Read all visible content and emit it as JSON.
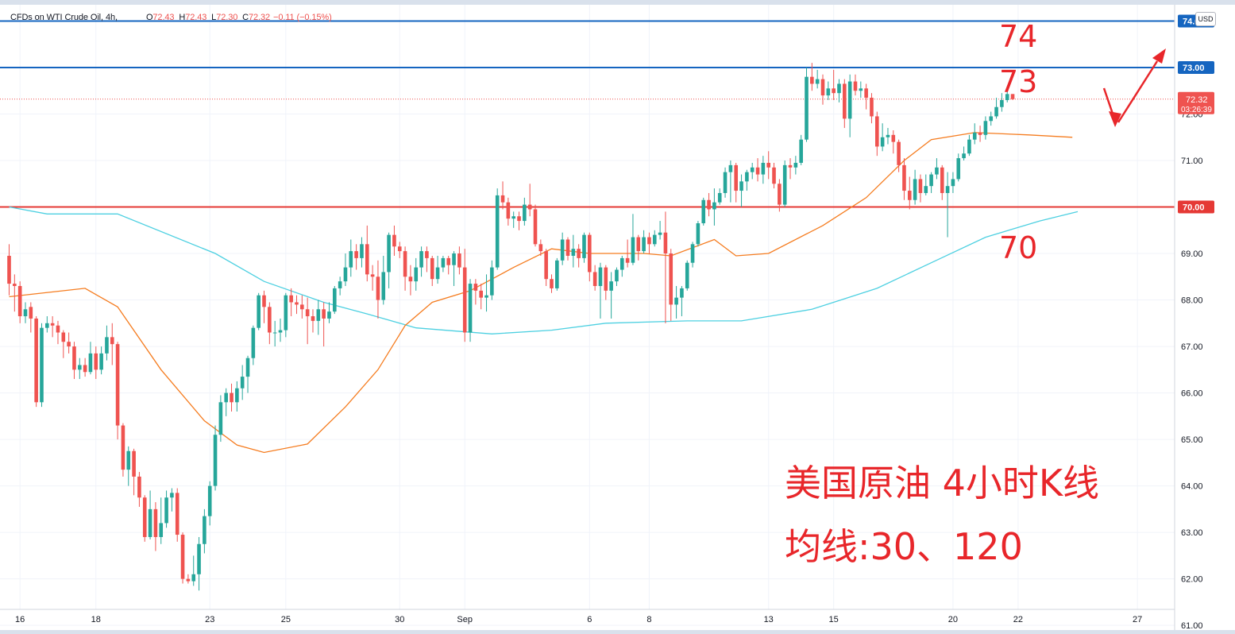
{
  "legend": {
    "symbol": "CFDs on WTI Crude Oil, 4h,",
    "o_label": "O",
    "o": "72.43",
    "h_label": "H",
    "h": "72.43",
    "l_label": "L",
    "l": "72.30",
    "c_label": "C",
    "c": "72.32",
    "change": "−0.11 (−0.15%)"
  },
  "currency": "USD",
  "price_tag": {
    "price": "72.32",
    "countdown": "03:26:39"
  },
  "annotations": {
    "level_74": "74",
    "level_73": "73",
    "level_70": "70",
    "title_line1": "美国原油 4小时K线",
    "title_line2": "均线:30、120"
  },
  "colors": {
    "up": "#26a69a",
    "down": "#ef5350",
    "ma30": "#f57c1f",
    "ma120": "#4dd0e1",
    "blue_line": "#1565c0",
    "red_line": "#e53935",
    "annotation": "#e8262a"
  },
  "chart_data": {
    "type": "candlestick",
    "title": "CFDs on WTI Crude Oil, 4h",
    "ylim": [
      60.9,
      74.35
    ],
    "y_ticks": [
      {
        "value": 72.0,
        "label": "72.00"
      },
      {
        "value": 71.0,
        "label": "71.00"
      },
      {
        "value": 69.0,
        "label": "69.00"
      },
      {
        "value": 68.0,
        "label": "68.00"
      },
      {
        "value": 67.0,
        "label": "67.00"
      },
      {
        "value": 66.0,
        "label": "66.00"
      },
      {
        "value": 65.0,
        "label": "65.00"
      },
      {
        "value": 64.0,
        "label": "64.00"
      },
      {
        "value": 63.0,
        "label": "63.00"
      },
      {
        "value": 62.0,
        "label": "62.00"
      },
      {
        "value": 61.0,
        "label": "61.00"
      }
    ],
    "x_ticks": [
      {
        "label": "16",
        "bar": 2
      },
      {
        "label": "18",
        "bar": 16
      },
      {
        "label": "23",
        "bar": 37
      },
      {
        "label": "25",
        "bar": 51
      },
      {
        "label": "30",
        "bar": 72
      },
      {
        "label": "Sep",
        "bar": 84
      },
      {
        "label": "6",
        "bar": 107
      },
      {
        "label": "8",
        "bar": 118
      },
      {
        "label": "13",
        "bar": 140
      },
      {
        "label": "15",
        "bar": 152
      },
      {
        "label": "20",
        "bar": 174
      },
      {
        "label": "22",
        "bar": 186
      },
      {
        "label": "27",
        "bar": 208
      }
    ],
    "horizontal_lines": [
      {
        "value": 74.0,
        "label": "74.00",
        "color": "blue"
      },
      {
        "value": 73.0,
        "label": "73.00",
        "color": "blue"
      },
      {
        "value": 70.0,
        "label": "70.00",
        "color": "red"
      }
    ],
    "ma30": [
      [
        0,
        68.07
      ],
      [
        14,
        68.25
      ],
      [
        20,
        67.85
      ],
      [
        28,
        66.5
      ],
      [
        36,
        65.4
      ],
      [
        42,
        64.88
      ],
      [
        47,
        64.72
      ],
      [
        55,
        64.9
      ],
      [
        62,
        65.7
      ],
      [
        68,
        66.5
      ],
      [
        73,
        67.45
      ],
      [
        78,
        67.95
      ],
      [
        85,
        68.2
      ],
      [
        93,
        68.7
      ],
      [
        100,
        69.1
      ],
      [
        107,
        69.0
      ],
      [
        117,
        69.0
      ],
      [
        122,
        68.95
      ],
      [
        130,
        69.3
      ],
      [
        134,
        68.95
      ],
      [
        140,
        69.0
      ],
      [
        150,
        69.6
      ],
      [
        158,
        70.2
      ],
      [
        165,
        71.0
      ],
      [
        170,
        71.45
      ],
      [
        178,
        71.6
      ],
      [
        188,
        71.55
      ],
      [
        196,
        71.5
      ]
    ],
    "ma120": [
      [
        0,
        70.0
      ],
      [
        7,
        69.85
      ],
      [
        20,
        69.85
      ],
      [
        38,
        69.0
      ],
      [
        47,
        68.4
      ],
      [
        58,
        67.95
      ],
      [
        66,
        67.7
      ],
      [
        75,
        67.4
      ],
      [
        89,
        67.27
      ],
      [
        100,
        67.35
      ],
      [
        110,
        67.5
      ],
      [
        125,
        67.55
      ],
      [
        135,
        67.55
      ],
      [
        148,
        67.8
      ],
      [
        160,
        68.25
      ],
      [
        170,
        68.8
      ],
      [
        180,
        69.35
      ],
      [
        190,
        69.7
      ],
      [
        197,
        69.9
      ]
    ],
    "candles": [
      [
        68.95,
        68.35,
        69.2,
        68.1
      ],
      [
        68.35,
        68.3,
        68.55,
        67.75
      ],
      [
        68.3,
        67.65,
        68.4,
        67.5
      ],
      [
        67.65,
        67.8,
        67.95,
        67.5
      ],
      [
        67.85,
        67.6,
        67.95,
        67.3
      ],
      [
        67.6,
        65.8,
        67.65,
        65.7
      ],
      [
        65.8,
        67.4,
        67.5,
        65.7
      ],
      [
        67.4,
        67.5,
        67.65,
        67.3
      ],
      [
        67.5,
        67.45,
        67.65,
        67.2
      ],
      [
        67.45,
        67.3,
        67.55,
        67.05
      ],
      [
        67.3,
        67.1,
        67.35,
        66.75
      ],
      [
        67.1,
        67.0,
        67.3,
        66.85
      ],
      [
        67.0,
        66.5,
        67.1,
        66.3
      ],
      [
        66.5,
        66.6,
        66.75,
        66.3
      ],
      [
        66.6,
        66.45,
        66.75,
        66.35
      ],
      [
        66.45,
        66.85,
        67.1,
        66.4
      ],
      [
        66.85,
        66.5,
        67.0,
        66.3
      ],
      [
        66.5,
        66.85,
        67.0,
        66.4
      ],
      [
        66.85,
        67.2,
        67.45,
        66.7
      ],
      [
        67.2,
        67.05,
        67.5,
        66.6
      ],
      [
        67.05,
        65.3,
        67.1,
        65.0
      ],
      [
        65.3,
        64.35,
        65.35,
        64.2
      ],
      [
        64.35,
        64.75,
        64.85,
        64.0
      ],
      [
        64.75,
        64.2,
        64.8,
        63.8
      ],
      [
        64.2,
        63.75,
        64.3,
        63.55
      ],
      [
        63.75,
        62.9,
        63.8,
        62.8
      ],
      [
        62.9,
        63.5,
        63.9,
        62.85
      ],
      [
        63.5,
        62.9,
        63.65,
        62.6
      ],
      [
        62.9,
        63.2,
        63.75,
        62.75
      ],
      [
        63.2,
        63.75,
        63.9,
        63.1
      ],
      [
        63.75,
        63.85,
        63.95,
        63.45
      ],
      [
        63.85,
        62.95,
        63.95,
        62.8
      ],
      [
        62.95,
        62.0,
        63.0,
        61.9
      ],
      [
        62.0,
        61.95,
        62.1,
        61.9
      ],
      [
        61.95,
        62.1,
        62.5,
        61.85
      ],
      [
        62.1,
        62.75,
        62.9,
        61.75
      ],
      [
        62.75,
        63.35,
        63.5,
        62.55
      ],
      [
        63.35,
        64.0,
        64.1,
        63.15
      ],
      [
        64.0,
        65.1,
        65.3,
        63.9
      ],
      [
        65.1,
        65.8,
        65.95,
        64.95
      ],
      [
        65.8,
        66.0,
        66.1,
        65.5
      ],
      [
        66.0,
        65.8,
        66.2,
        65.6
      ],
      [
        65.8,
        66.1,
        66.25,
        65.6
      ],
      [
        66.1,
        66.35,
        66.6,
        65.85
      ],
      [
        66.35,
        66.75,
        66.8,
        66.0
      ],
      [
        66.75,
        67.4,
        67.45,
        66.6
      ],
      [
        67.4,
        68.1,
        68.15,
        67.35
      ],
      [
        68.1,
        67.85,
        68.2,
        67.5
      ],
      [
        67.85,
        67.3,
        67.95,
        67.05
      ],
      [
        67.3,
        67.3,
        67.55,
        67.0
      ],
      [
        67.3,
        67.35,
        67.6,
        67.1
      ],
      [
        67.35,
        68.1,
        68.15,
        67.2
      ],
      [
        68.1,
        67.95,
        68.25,
        67.65
      ],
      [
        67.95,
        67.9,
        68.1,
        67.7
      ],
      [
        67.9,
        67.8,
        68.1,
        67.6
      ],
      [
        67.8,
        67.65,
        68.05,
        67.05
      ],
      [
        67.65,
        67.55,
        67.8,
        67.3
      ],
      [
        67.55,
        67.8,
        68.0,
        67.25
      ],
      [
        67.8,
        67.6,
        67.95,
        67.0
      ],
      [
        67.6,
        67.75,
        67.95,
        67.5
      ],
      [
        67.75,
        68.25,
        68.3,
        67.7
      ],
      [
        68.25,
        68.4,
        68.5,
        68.1
      ],
      [
        68.4,
        68.7,
        69.0,
        68.3
      ],
      [
        68.7,
        69.05,
        69.3,
        68.5
      ],
      [
        69.05,
        68.9,
        69.2,
        68.65
      ],
      [
        68.9,
        69.2,
        69.35,
        68.7
      ],
      [
        69.2,
        68.55,
        69.6,
        68.4
      ],
      [
        68.55,
        68.5,
        68.75,
        68.2
      ],
      [
        68.5,
        68.0,
        68.85,
        67.6
      ],
      [
        68.0,
        68.6,
        68.95,
        67.9
      ],
      [
        68.6,
        69.4,
        69.45,
        68.25
      ],
      [
        69.4,
        69.15,
        69.6,
        68.95
      ],
      [
        69.15,
        69.05,
        69.25,
        68.9
      ],
      [
        69.05,
        68.5,
        69.15,
        68.2
      ],
      [
        68.5,
        68.4,
        68.75,
        68.1
      ],
      [
        68.4,
        68.7,
        68.9,
        68.2
      ],
      [
        68.7,
        69.05,
        69.15,
        68.5
      ],
      [
        69.05,
        68.9,
        69.15,
        68.6
      ],
      [
        68.9,
        68.45,
        68.95,
        68.3
      ],
      [
        68.45,
        68.7,
        68.95,
        68.35
      ],
      [
        68.7,
        68.9,
        68.95,
        68.6
      ],
      [
        68.9,
        68.75,
        68.95,
        68.55
      ],
      [
        68.75,
        69.0,
        69.05,
        68.3
      ],
      [
        69.0,
        68.7,
        69.15,
        68.55
      ],
      [
        68.7,
        67.3,
        69.1,
        67.1
      ],
      [
        67.3,
        68.35,
        68.45,
        67.1
      ],
      [
        68.35,
        68.2,
        68.45,
        67.9
      ],
      [
        68.2,
        68.05,
        68.35,
        67.8
      ],
      [
        68.05,
        68.1,
        68.55,
        67.75
      ],
      [
        68.1,
        68.7,
        68.85,
        68.0
      ],
      [
        68.7,
        70.25,
        70.4,
        68.65
      ],
      [
        70.25,
        70.1,
        70.55,
        69.95
      ],
      [
        70.1,
        69.75,
        70.2,
        69.6
      ],
      [
        69.75,
        69.8,
        69.9,
        69.55
      ],
      [
        69.8,
        69.7,
        69.9,
        69.5
      ],
      [
        69.7,
        70.05,
        70.2,
        69.6
      ],
      [
        70.05,
        69.95,
        70.5,
        69.8
      ],
      [
        69.95,
        69.2,
        70.05,
        69.15
      ],
      [
        69.2,
        69.05,
        69.3,
        68.95
      ],
      [
        69.05,
        68.45,
        69.1,
        68.3
      ],
      [
        68.45,
        68.25,
        68.55,
        68.15
      ],
      [
        68.25,
        68.85,
        68.9,
        68.2
      ],
      [
        68.85,
        69.3,
        69.45,
        68.75
      ],
      [
        69.3,
        68.95,
        69.35,
        68.85
      ],
      [
        68.95,
        69.1,
        69.4,
        68.7
      ],
      [
        69.1,
        68.9,
        69.2,
        68.7
      ],
      [
        68.9,
        69.4,
        69.45,
        68.8
      ],
      [
        69.4,
        68.6,
        69.45,
        68.4
      ],
      [
        68.6,
        68.3,
        68.75,
        68.2
      ],
      [
        68.3,
        68.7,
        68.8,
        67.6
      ],
      [
        68.7,
        68.2,
        68.75,
        68.0
      ],
      [
        68.2,
        68.4,
        68.6,
        67.6
      ],
      [
        68.4,
        68.65,
        68.7,
        68.3
      ],
      [
        68.65,
        68.9,
        68.95,
        68.5
      ],
      [
        68.9,
        68.8,
        69.3,
        68.7
      ],
      [
        68.8,
        69.35,
        69.85,
        68.75
      ],
      [
        69.35,
        69.05,
        69.4,
        68.85
      ],
      [
        69.05,
        69.35,
        69.5,
        69.0
      ],
      [
        69.35,
        69.2,
        69.45,
        69.0
      ],
      [
        69.2,
        69.4,
        69.5,
        69.15
      ],
      [
        69.4,
        69.45,
        69.7,
        69.3
      ],
      [
        69.45,
        69.0,
        69.9,
        67.5
      ],
      [
        69.0,
        67.9,
        69.1,
        67.55
      ],
      [
        67.9,
        68.05,
        68.3,
        67.6
      ],
      [
        68.05,
        68.25,
        68.3,
        67.65
      ],
      [
        68.25,
        68.8,
        68.85,
        68.2
      ],
      [
        68.8,
        69.2,
        69.25,
        68.7
      ],
      [
        69.2,
        69.65,
        69.7,
        69.15
      ],
      [
        69.65,
        70.15,
        70.2,
        69.6
      ],
      [
        70.15,
        69.95,
        70.3,
        69.8
      ],
      [
        69.95,
        70.1,
        70.4,
        69.6
      ],
      [
        70.1,
        70.3,
        70.4,
        70.05
      ],
      [
        70.3,
        70.75,
        70.85,
        70.2
      ],
      [
        70.75,
        70.9,
        71.0,
        70.1
      ],
      [
        70.9,
        70.35,
        70.95,
        70.1
      ],
      [
        70.35,
        70.55,
        70.7,
        70.0
      ],
      [
        70.55,
        70.75,
        70.8,
        70.35
      ],
      [
        70.75,
        70.85,
        70.95,
        70.6
      ],
      [
        70.85,
        70.7,
        71.05,
        70.55
      ],
      [
        70.7,
        70.95,
        71.1,
        70.5
      ],
      [
        70.95,
        70.85,
        71.2,
        70.6
      ],
      [
        70.85,
        70.5,
        70.95,
        70.4
      ],
      [
        70.5,
        70.05,
        70.6,
        69.9
      ],
      [
        70.05,
        70.9,
        71.0,
        70.0
      ],
      [
        70.9,
        70.85,
        71.05,
        70.6
      ],
      [
        70.85,
        70.95,
        71.1,
        70.7
      ],
      [
        70.95,
        71.45,
        71.55,
        70.9
      ],
      [
        71.45,
        72.8,
        73.0,
        71.4
      ],
      [
        72.8,
        72.65,
        73.1,
        72.5
      ],
      [
        72.65,
        72.75,
        72.95,
        72.55
      ],
      [
        72.75,
        72.4,
        72.85,
        72.2
      ],
      [
        72.4,
        72.55,
        72.7,
        72.3
      ],
      [
        72.55,
        72.45,
        72.95,
        72.3
      ],
      [
        72.45,
        72.65,
        72.75,
        72.25
      ],
      [
        72.65,
        71.9,
        72.75,
        71.7
      ],
      [
        71.9,
        72.7,
        72.85,
        71.5
      ],
      [
        72.7,
        72.5,
        72.85,
        72.4
      ],
      [
        72.5,
        72.55,
        72.7,
        72.35
      ],
      [
        72.55,
        72.35,
        72.65,
        72.1
      ],
      [
        72.35,
        71.95,
        72.45,
        71.8
      ],
      [
        71.95,
        71.3,
        72.05,
        71.1
      ],
      [
        71.3,
        71.5,
        71.8,
        71.2
      ],
      [
        71.5,
        71.55,
        71.7,
        71.35
      ],
      [
        71.55,
        71.4,
        71.65,
        71.15
      ],
      [
        71.4,
        70.9,
        71.45,
        70.75
      ],
      [
        70.9,
        70.35,
        71.05,
        70.15
      ],
      [
        70.35,
        70.15,
        70.65,
        69.95
      ],
      [
        70.15,
        70.6,
        70.8,
        70.05
      ],
      [
        70.6,
        70.3,
        70.7,
        70.1
      ],
      [
        70.3,
        70.45,
        70.7,
        70.25
      ],
      [
        70.45,
        70.7,
        70.75,
        70.3
      ],
      [
        70.7,
        70.85,
        71.05,
        70.6
      ],
      [
        70.85,
        70.3,
        70.9,
        70.15
      ],
      [
        70.3,
        70.45,
        70.75,
        69.35
      ],
      [
        70.45,
        70.6,
        70.75,
        70.3
      ],
      [
        70.6,
        71.05,
        71.15,
        70.55
      ],
      [
        71.05,
        71.15,
        71.3,
        71.0
      ],
      [
        71.15,
        71.45,
        71.55,
        71.1
      ],
      [
        71.45,
        71.6,
        71.8,
        71.35
      ],
      [
        71.6,
        71.55,
        71.75,
        71.4
      ],
      [
        71.55,
        71.85,
        71.95,
        71.45
      ],
      [
        71.85,
        71.95,
        72.05,
        71.75
      ],
      [
        71.95,
        72.15,
        72.35,
        71.9
      ],
      [
        72.15,
        72.3,
        72.45,
        72.05
      ],
      [
        72.3,
        72.43,
        72.5,
        72.25
      ],
      [
        72.43,
        72.32,
        72.43,
        72.3
      ]
    ]
  }
}
